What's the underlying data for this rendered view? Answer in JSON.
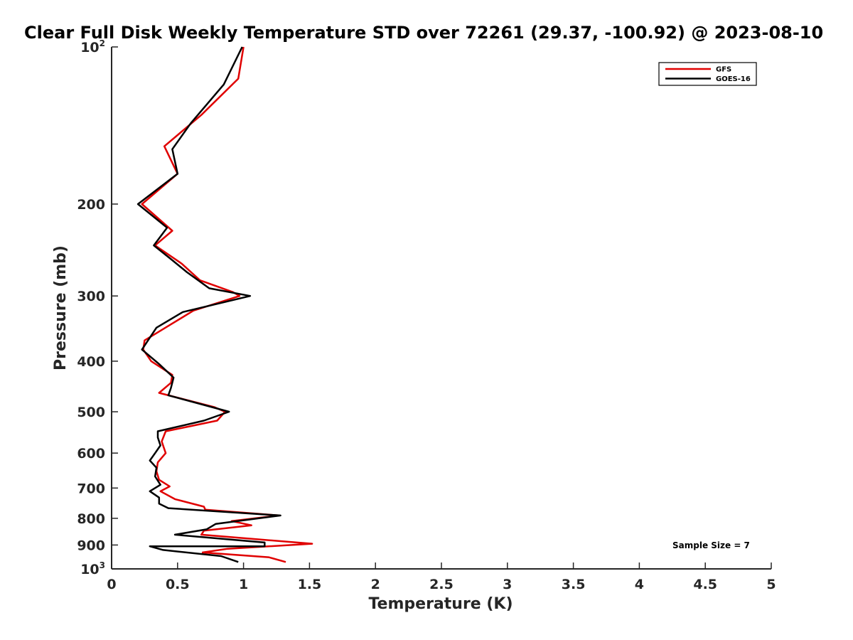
{
  "chart_data": {
    "type": "line",
    "title": "Clear Full Disk Weekly Temperature STD over 72261 (29.37, -100.92) @ 2023-08-10",
    "xlabel": "Temperature (K)",
    "ylabel": "Pressure (mb)",
    "xlim": [
      0,
      5
    ],
    "ylim": [
      100,
      1000
    ],
    "yscale": "log",
    "y_reversed": true,
    "xticks": [
      0,
      0.5,
      1,
      1.5,
      2,
      2.5,
      3,
      3.5,
      4,
      4.5,
      5
    ],
    "xtick_labels": [
      "0",
      "0.5",
      "1",
      "1.5",
      "2",
      "2.5",
      "3",
      "3.5",
      "4",
      "4.5",
      "5"
    ],
    "yticks": [
      {
        "value": 100,
        "base": "10",
        "exp": "2"
      },
      {
        "value": 200,
        "label": "200"
      },
      {
        "value": 300,
        "label": "300"
      },
      {
        "value": 400,
        "label": "400"
      },
      {
        "value": 500,
        "label": "500"
      },
      {
        "value": 600,
        "label": "600"
      },
      {
        "value": 700,
        "label": "700"
      },
      {
        "value": 800,
        "label": "800"
      },
      {
        "value": 900,
        "label": "900"
      },
      {
        "value": 1000,
        "base": "10",
        "exp": "3"
      }
    ],
    "grid": false,
    "legend_position": "top-right",
    "annotation": "Sample Size = 7",
    "series": [
      {
        "name": "GFS",
        "color": "#e00000",
        "points": [
          [
            1.0,
            100
          ],
          [
            0.96,
            115
          ],
          [
            0.68,
            135
          ],
          [
            0.4,
            155
          ],
          [
            0.5,
            175
          ],
          [
            0.23,
            200
          ],
          [
            0.46,
            225
          ],
          [
            0.33,
            240
          ],
          [
            0.53,
            260
          ],
          [
            0.67,
            280
          ],
          [
            0.92,
            295
          ],
          [
            0.97,
            300
          ],
          [
            0.62,
            320
          ],
          [
            0.45,
            340
          ],
          [
            0.25,
            365
          ],
          [
            0.24,
            380
          ],
          [
            0.3,
            400
          ],
          [
            0.46,
            425
          ],
          [
            0.45,
            440
          ],
          [
            0.36,
            460
          ],
          [
            0.78,
            490
          ],
          [
            0.86,
            500
          ],
          [
            0.8,
            520
          ],
          [
            0.41,
            545
          ],
          [
            0.38,
            570
          ],
          [
            0.41,
            600
          ],
          [
            0.35,
            625
          ],
          [
            0.34,
            650
          ],
          [
            0.36,
            675
          ],
          [
            0.44,
            695
          ],
          [
            0.37,
            710
          ],
          [
            0.48,
            735
          ],
          [
            0.7,
            760
          ],
          [
            0.71,
            770
          ],
          [
            1.27,
            790
          ],
          [
            0.91,
            810
          ],
          [
            1.06,
            825
          ],
          [
            0.7,
            845
          ],
          [
            0.68,
            860
          ],
          [
            1.52,
            895
          ],
          [
            0.88,
            915
          ],
          [
            0.69,
            930
          ],
          [
            1.19,
            950
          ],
          [
            1.32,
            970
          ]
        ]
      },
      {
        "name": "GOES-16",
        "color": "#000000",
        "points": [
          [
            0.99,
            100
          ],
          [
            0.85,
            118
          ],
          [
            0.6,
            140
          ],
          [
            0.46,
            157
          ],
          [
            0.5,
            175
          ],
          [
            0.2,
            200
          ],
          [
            0.42,
            222
          ],
          [
            0.32,
            240
          ],
          [
            0.45,
            255
          ],
          [
            0.57,
            270
          ],
          [
            0.74,
            290
          ],
          [
            1.05,
            300
          ],
          [
            0.54,
            322
          ],
          [
            0.34,
            345
          ],
          [
            0.23,
            380
          ],
          [
            0.36,
            405
          ],
          [
            0.47,
            430
          ],
          [
            0.45,
            450
          ],
          [
            0.43,
            465
          ],
          [
            0.89,
            500
          ],
          [
            0.7,
            520
          ],
          [
            0.35,
            545
          ],
          [
            0.35,
            560
          ],
          [
            0.37,
            580
          ],
          [
            0.33,
            600
          ],
          [
            0.29,
            620
          ],
          [
            0.34,
            640
          ],
          [
            0.33,
            665
          ],
          [
            0.37,
            690
          ],
          [
            0.29,
            710
          ],
          [
            0.36,
            730
          ],
          [
            0.36,
            750
          ],
          [
            0.43,
            765
          ],
          [
            1.28,
            790
          ],
          [
            0.79,
            820
          ],
          [
            0.72,
            840
          ],
          [
            0.48,
            860
          ],
          [
            1.16,
            890
          ],
          [
            1.16,
            905
          ],
          [
            0.29,
            905
          ],
          [
            0.39,
            920
          ],
          [
            0.83,
            945
          ],
          [
            0.96,
            970
          ]
        ]
      }
    ]
  }
}
